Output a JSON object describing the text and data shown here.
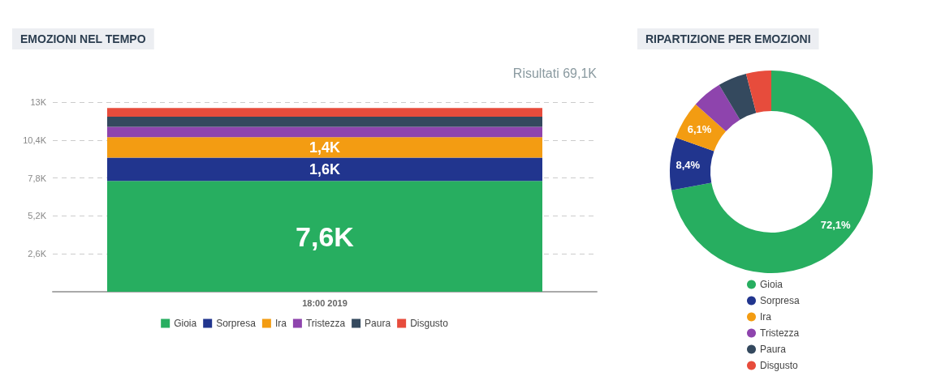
{
  "chart_data": [
    {
      "type": "bar",
      "title": "EMOZIONI NEL TEMPO",
      "stacked": true,
      "categories": [
        "18:00 2019"
      ],
      "ylim": [
        0,
        13
      ],
      "yticks": [
        {
          "value": 2.6,
          "label": "2,6K"
        },
        {
          "value": 5.2,
          "label": "5,2K"
        },
        {
          "value": 7.8,
          "label": "7,8K"
        },
        {
          "value": 10.4,
          "label": "10,4K"
        },
        {
          "value": 13,
          "label": "13K"
        }
      ],
      "grid": "y",
      "legend": "bottom",
      "annotations": [
        "Risultati 69,1K"
      ],
      "series": [
        {
          "name": "Gioia",
          "color": "#27ae60",
          "values": [
            7.6
          ],
          "value_labels": [
            "7,6K"
          ]
        },
        {
          "name": "Sorpresa",
          "color": "#21358e",
          "values": [
            1.6
          ],
          "value_labels": [
            "1,6K"
          ]
        },
        {
          "name": "Ira",
          "color": "#f39c12",
          "values": [
            1.4
          ],
          "value_labels": [
            "1,4K"
          ]
        },
        {
          "name": "Tristezza",
          "color": "#8e44ad",
          "values": [
            0.7
          ]
        },
        {
          "name": "Paura",
          "color": "#34495e",
          "values": [
            0.7
          ]
        },
        {
          "name": "Disgusto",
          "color": "#e74c3c",
          "values": [
            0.6
          ]
        }
      ]
    },
    {
      "type": "donut",
      "title": "RIPARTIZIONE PER EMOZIONI",
      "legend": "bottom",
      "categories": [
        "Gioia",
        "Sorpresa",
        "Ira",
        "Tristezza",
        "Paura",
        "Disgusto"
      ],
      "values": [
        72.1,
        8.4,
        6.1,
        4.8,
        4.6,
        4.0
      ],
      "colors": [
        "#27ae60",
        "#21358e",
        "#f39c12",
        "#8e44ad",
        "#34495e",
        "#e74c3c"
      ],
      "value_labels": [
        "72,1%",
        "8,4%",
        "6,1%",
        null,
        null,
        null
      ]
    }
  ]
}
